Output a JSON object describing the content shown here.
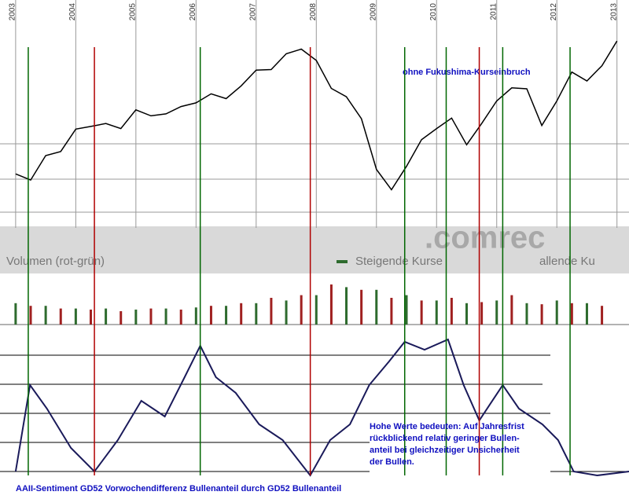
{
  "chart_data": [
    {
      "type": "line",
      "xlim": [
        2002.74,
        2013.2
      ],
      "xticks": [
        2003,
        2004,
        2005,
        2006,
        2007,
        2008,
        2009,
        2010,
        2011,
        2012,
        2013
      ],
      "ylim": [
        600,
        1700
      ],
      "color": "#000000",
      "x": [
        2003.0,
        2003.25,
        2003.5,
        2003.75,
        2004.0,
        2004.25,
        2004.5,
        2004.75,
        2005.0,
        2005.25,
        2005.5,
        2005.75,
        2006.0,
        2006.25,
        2006.5,
        2006.75,
        2007.0,
        2007.25,
        2007.5,
        2007.75,
        2008.0,
        2008.25,
        2008.5,
        2008.75,
        2009.0,
        2009.25,
        2009.5,
        2009.75,
        2010.0,
        2010.25,
        2010.5,
        2010.75,
        2011.0,
        2011.25,
        2011.5,
        2011.75,
        2012.0,
        2012.25,
        2012.5,
        2012.75,
        2013.0
      ],
      "values": [
        880,
        848,
        975,
        996,
        1112,
        1126,
        1141,
        1115,
        1212,
        1181,
        1191,
        1229,
        1248,
        1295,
        1270,
        1336,
        1418,
        1421,
        1503,
        1527,
        1468,
        1323,
        1280,
        1166,
        903,
        798,
        919,
        1057,
        1115,
        1169,
        1031,
        1141,
        1258,
        1326,
        1321,
        1131,
        1258,
        1408,
        1362,
        1441,
        1569
      ],
      "annotation": "ohne Fukushima-Kurseinbruch",
      "markers": [
        {
          "x": 2003.21,
          "color": "#006600"
        },
        {
          "x": 2004.31,
          "color": "#b00000"
        },
        {
          "x": 2006.07,
          "color": "#006600"
        },
        {
          "x": 2007.9,
          "color": "#b00000"
        },
        {
          "x": 2009.47,
          "color": "#006600"
        },
        {
          "x": 2010.16,
          "color": "#006600"
        },
        {
          "x": 2010.71,
          "color": "#b00000"
        },
        {
          "x": 2011.1,
          "color": "#006600"
        },
        {
          "x": 2012.22,
          "color": "#006600"
        }
      ]
    },
    {
      "type": "bar",
      "title": "Volumen (rot-grün)",
      "watermark": ".comrec",
      "xlim": [
        2002.74,
        2013.2
      ],
      "ylim": [
        0,
        100
      ],
      "series": [
        {
          "name": "Steigende Kurse",
          "color": "#2e6b2e",
          "x": [
            2003.0,
            2003.5,
            2004.0,
            2004.5,
            2005.0,
            2005.5,
            2006.0,
            2006.5,
            2007.0,
            2007.5,
            2008.0,
            2008.5,
            2009.0,
            2009.5,
            2010.0,
            2010.5,
            2011.0,
            2011.5,
            2012.0,
            2012.5
          ],
          "values": [
            40,
            35,
            30,
            30,
            28,
            30,
            32,
            35,
            40,
            45,
            55,
            70,
            65,
            55,
            45,
            40,
            45,
            40,
            45,
            40
          ]
        },
        {
          "name": "allende Ku",
          "color": "#a02020",
          "x": [
            2003.25,
            2003.75,
            2004.25,
            2004.75,
            2005.25,
            2005.75,
            2006.25,
            2006.75,
            2007.25,
            2007.75,
            2008.25,
            2008.75,
            2009.25,
            2009.75,
            2010.25,
            2010.75,
            2011.25,
            2011.75,
            2012.25,
            2012.75
          ],
          "values": [
            35,
            30,
            28,
            25,
            30,
            28,
            35,
            40,
            50,
            55,
            75,
            65,
            50,
            45,
            50,
            42,
            55,
            38,
            40,
            35
          ]
        }
      ]
    },
    {
      "type": "line",
      "title": "AAII-Sentiment GD52 Vorwochendifferenz Bullenanteil durch GD52 Bullenanteil",
      "xlim": [
        2002.74,
        2013.2
      ],
      "ylim": [
        0,
        100
      ],
      "color": "#1a1a5a",
      "x": [
        2003.0,
        2003.24,
        2003.52,
        2003.92,
        2004.31,
        2004.7,
        2005.09,
        2005.48,
        2005.81,
        2006.07,
        2006.33,
        2006.66,
        2007.05,
        2007.44,
        2007.9,
        2008.23,
        2008.56,
        2008.88,
        2009.21,
        2009.47,
        2009.8,
        2010.19,
        2010.45,
        2010.71,
        2011.1,
        2011.37,
        2011.76,
        2012.02,
        2012.28,
        2012.67,
        2013.2
      ],
      "values": [
        10,
        65,
        50,
        25,
        10,
        30,
        55,
        45,
        70,
        90,
        70,
        60,
        40,
        30,
        7.5,
        30,
        40,
        65,
        80,
        92.5,
        87.5,
        94,
        65,
        42.5,
        65,
        50,
        40,
        30,
        10,
        7.5,
        10
      ],
      "annotation_lines": [
        "Hohe Werte bedeuten: Auf Jahresfrist",
        "rückblickend relativ geringer Bullen-",
        "anteil bei gleichzeitiger Unsicherheit",
        "der Bullen."
      ]
    }
  ]
}
